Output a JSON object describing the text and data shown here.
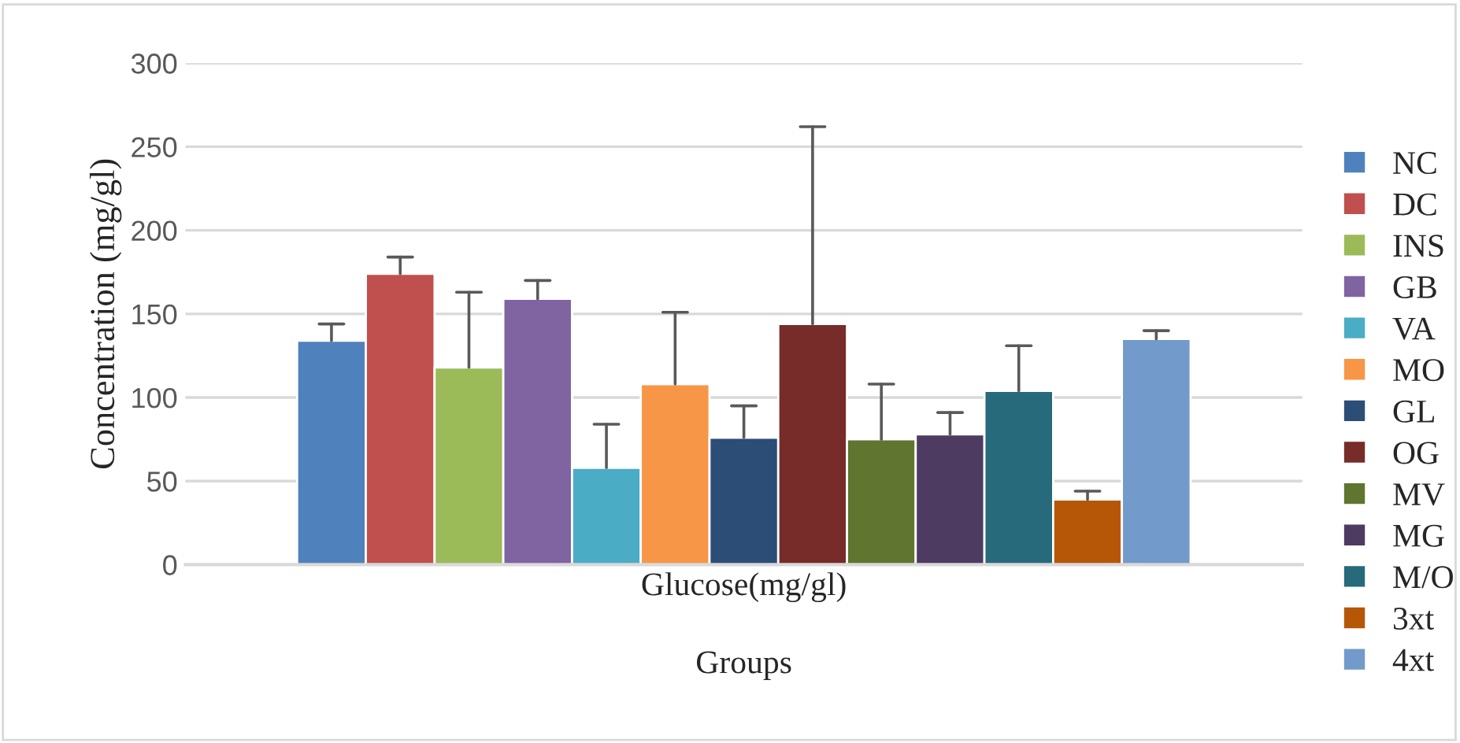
{
  "chart_data": {
    "type": "bar",
    "xlabel": "Groups",
    "ylabel": "Concentration (mg/gl)",
    "categories": [
      "Glucose(mg/gl)"
    ],
    "series": [
      {
        "name": "NC",
        "color": "#4f81bd",
        "values": [
          134
        ],
        "errors": [
          [
            134,
            144
          ]
        ]
      },
      {
        "name": "DC",
        "color": "#c0504d",
        "values": [
          174
        ],
        "errors": [
          [
            174,
            184
          ]
        ]
      },
      {
        "name": "INS",
        "color": "#9bbb59",
        "values": [
          118
        ],
        "errors": [
          [
            118,
            163
          ]
        ]
      },
      {
        "name": "GB",
        "color": "#8064a2",
        "values": [
          159
        ],
        "errors": [
          [
            159,
            170
          ]
        ]
      },
      {
        "name": "VA",
        "color": "#4bacc6",
        "values": [
          58
        ],
        "errors": [
          [
            58,
            84
          ]
        ]
      },
      {
        "name": "MO",
        "color": "#f79646",
        "values": [
          108
        ],
        "errors": [
          [
            108,
            151
          ]
        ]
      },
      {
        "name": "GL",
        "color": "#2c4d75",
        "values": [
          76
        ],
        "errors": [
          [
            76,
            95
          ]
        ]
      },
      {
        "name": "OG",
        "color": "#772c2a",
        "values": [
          144
        ],
        "errors": [
          [
            144,
            262
          ]
        ]
      },
      {
        "name": "MV",
        "color": "#5f7530",
        "values": [
          75
        ],
        "errors": [
          [
            75,
            108
          ]
        ]
      },
      {
        "name": "MG",
        "color": "#4d3b62",
        "values": [
          78
        ],
        "errors": [
          [
            78,
            91
          ]
        ]
      },
      {
        "name": "M/O",
        "color": "#276a7c",
        "values": [
          104
        ],
        "errors": [
          [
            104,
            131
          ]
        ]
      },
      {
        "name": "3xt",
        "color": "#b65708",
        "values": [
          39
        ],
        "errors": [
          [
            39,
            44
          ]
        ]
      },
      {
        "name": "4xt",
        "color": "#729aca",
        "values": [
          135
        ],
        "errors": [
          [
            135,
            140
          ]
        ]
      }
    ],
    "ylim": [
      0,
      300
    ],
    "yticks": [
      0,
      50,
      100,
      150,
      200,
      250,
      300
    ],
    "grid": "y",
    "legend": "right"
  }
}
